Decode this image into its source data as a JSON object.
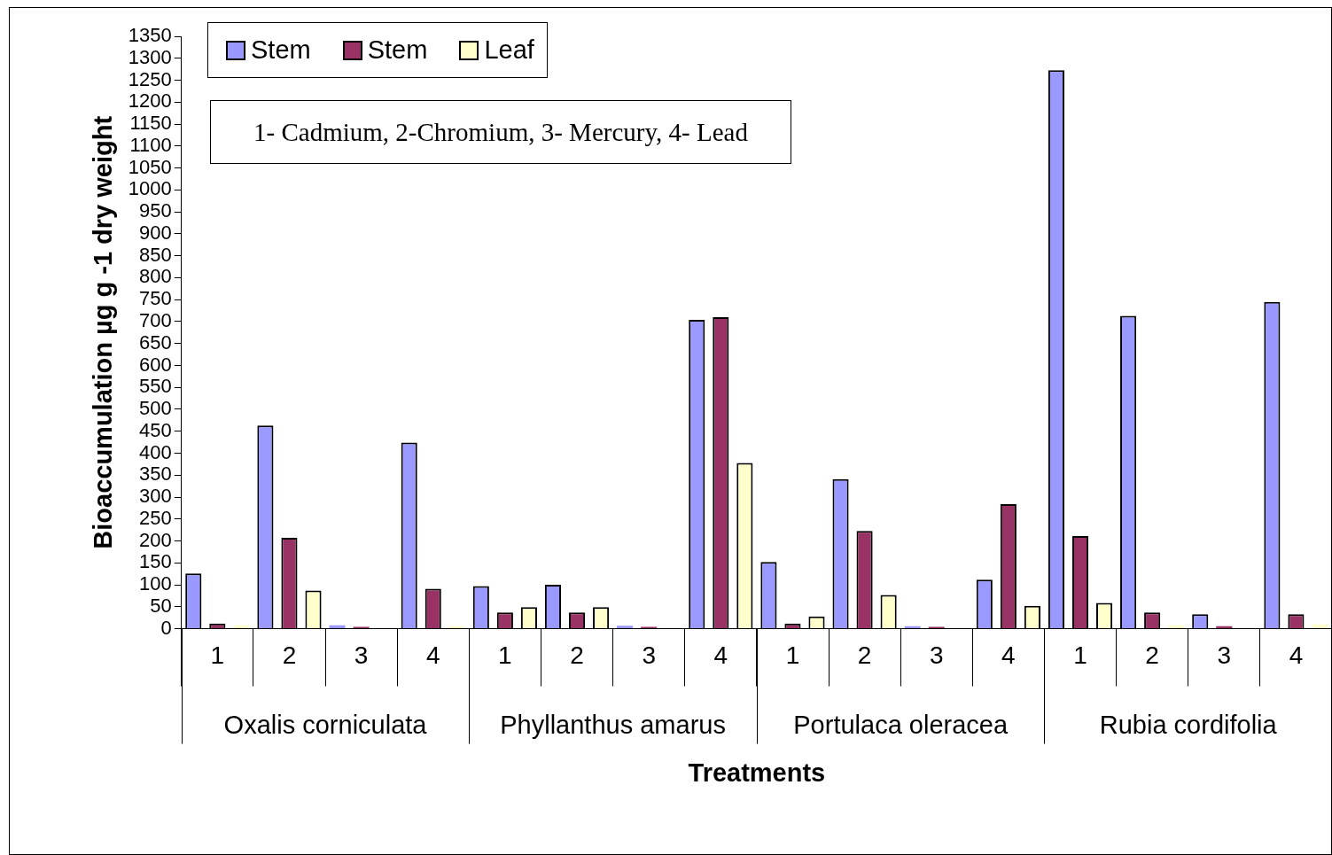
{
  "chart_data": {
    "type": "bar",
    "xlabel": "Treatments",
    "ylabel": "Bioaccumulation µg g -1 dry weight",
    "categories": [
      "1",
      "2",
      "3",
      "4",
      "1",
      "2",
      "3",
      "4",
      "1",
      "2",
      "3",
      "4",
      "1",
      "2",
      "3",
      "4"
    ],
    "series": [
      {
        "name": "Stem",
        "color": "#9999ff",
        "values": [
          126,
          463,
          8,
          424,
          97,
          100,
          7,
          704,
          152,
          341,
          6,
          112,
          1273,
          713,
          33,
          745
        ]
      },
      {
        "name": "Stem",
        "color": "#993366",
        "values": [
          12,
          207,
          4,
          91,
          37,
          37,
          4,
          710,
          12,
          223,
          4,
          284,
          211,
          37,
          6,
          33
        ]
      },
      {
        "name": "Leaf",
        "color": "#ffffcc",
        "values": [
          8,
          87,
          null,
          6,
          49,
          49,
          null,
          378,
          28,
          77,
          null,
          52,
          59,
          8,
          null,
          10
        ]
      }
    ],
    "ylim": [
      0,
      1350
    ],
    "yticks": [
      0,
      50,
      100,
      150,
      200,
      250,
      300,
      350,
      400,
      450,
      500,
      550,
      600,
      650,
      700,
      750,
      800,
      850,
      900,
      950,
      1000,
      1050,
      1100,
      1150,
      1200,
      1250,
      1300,
      1350
    ],
    "grid": false,
    "legend": "top left",
    "annotations": [
      "1- Cadmium,  2-Chromium, 3- Mercury, 4- Lead",
      "Oxalis corniculata",
      "Phyllanthus amarus",
      "Portulaca oleracea",
      "Rubia cordifolia"
    ]
  }
}
